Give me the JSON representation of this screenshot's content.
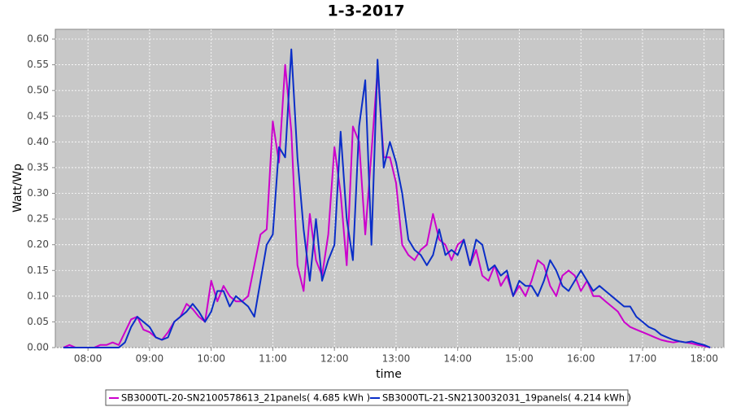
{
  "chart_data": {
    "type": "line",
    "title": "1-3-2017",
    "x_label": "time",
    "y_label": "Watt/Wp",
    "x": [
      7.6,
      7.7,
      7.8,
      7.9,
      8.0,
      8.1,
      8.2,
      8.3,
      8.4,
      8.5,
      8.6,
      8.7,
      8.8,
      8.9,
      9.0,
      9.1,
      9.2,
      9.3,
      9.4,
      9.5,
      9.6,
      9.7,
      9.8,
      9.9,
      10.0,
      10.1,
      10.2,
      10.3,
      10.4,
      10.5,
      10.6,
      10.7,
      10.8,
      10.9,
      11.0,
      11.1,
      11.2,
      11.3,
      11.4,
      11.5,
      11.6,
      11.7,
      11.8,
      11.9,
      12.0,
      12.1,
      12.2,
      12.3,
      12.4,
      12.5,
      12.6,
      12.7,
      12.8,
      12.9,
      13.0,
      13.1,
      13.2,
      13.3,
      13.4,
      13.5,
      13.6,
      13.7,
      13.8,
      13.9,
      14.0,
      14.1,
      14.2,
      14.3,
      14.4,
      14.5,
      14.6,
      14.7,
      14.8,
      14.9,
      15.0,
      15.1,
      15.2,
      15.3,
      15.4,
      15.5,
      15.6,
      15.7,
      15.8,
      15.9,
      16.0,
      16.1,
      16.2,
      16.3,
      16.4,
      16.5,
      16.6,
      16.7,
      16.8,
      16.9,
      17.0,
      17.1,
      17.2,
      17.3,
      17.4,
      17.5,
      17.6,
      17.7,
      17.8,
      17.9,
      18.0,
      18.1
    ],
    "series": [
      {
        "name": "SB3000TL-20-SN2100578613_21panels( 4.685 kWh )",
        "color": "#cc00cc",
        "values": [
          0,
          0.005,
          0,
          0,
          0,
          0,
          0.005,
          0.005,
          0.01,
          0.005,
          0.03,
          0.055,
          0.06,
          0.035,
          0.03,
          0.02,
          0.015,
          0.03,
          0.05,
          0.06,
          0.085,
          0.075,
          0.06,
          0.05,
          0.13,
          0.09,
          0.12,
          0.1,
          0.09,
          0.09,
          0.1,
          0.16,
          0.22,
          0.23,
          0.44,
          0.36,
          0.55,
          0.42,
          0.16,
          0.11,
          0.26,
          0.17,
          0.14,
          0.22,
          0.39,
          0.3,
          0.16,
          0.43,
          0.4,
          0.22,
          0.38,
          0.54,
          0.37,
          0.37,
          0.32,
          0.2,
          0.18,
          0.17,
          0.19,
          0.2,
          0.26,
          0.21,
          0.2,
          0.17,
          0.2,
          0.21,
          0.16,
          0.19,
          0.14,
          0.13,
          0.16,
          0.12,
          0.14,
          0.1,
          0.12,
          0.1,
          0.13,
          0.17,
          0.16,
          0.12,
          0.1,
          0.14,
          0.15,
          0.14,
          0.11,
          0.13,
          0.1,
          0.1,
          0.09,
          0.08,
          0.07,
          0.05,
          0.04,
          0.035,
          0.03,
          0.025,
          0.02,
          0.015,
          0.012,
          0.01,
          0.012,
          0.01,
          0.008,
          0.005,
          0.003,
          0
        ]
      },
      {
        "name": "SB3000TL-21-SN2130032031_19panels( 4.214 kWh )",
        "color": "#0a2ec8",
        "values": [
          0,
          0,
          0,
          0,
          0,
          0,
          0,
          0,
          0,
          0,
          0.01,
          0.04,
          0.06,
          0.05,
          0.04,
          0.02,
          0.015,
          0.02,
          0.05,
          0.06,
          0.07,
          0.085,
          0.07,
          0.05,
          0.07,
          0.11,
          0.11,
          0.08,
          0.1,
          0.09,
          0.08,
          0.06,
          0.13,
          0.2,
          0.22,
          0.39,
          0.37,
          0.58,
          0.37,
          0.23,
          0.13,
          0.25,
          0.13,
          0.17,
          0.2,
          0.42,
          0.25,
          0.17,
          0.43,
          0.52,
          0.2,
          0.56,
          0.35,
          0.4,
          0.36,
          0.3,
          0.21,
          0.19,
          0.18,
          0.16,
          0.18,
          0.23,
          0.18,
          0.19,
          0.18,
          0.21,
          0.16,
          0.21,
          0.2,
          0.15,
          0.16,
          0.14,
          0.15,
          0.1,
          0.13,
          0.12,
          0.12,
          0.1,
          0.13,
          0.17,
          0.15,
          0.12,
          0.11,
          0.13,
          0.15,
          0.13,
          0.11,
          0.12,
          0.11,
          0.1,
          0.09,
          0.08,
          0.08,
          0.06,
          0.05,
          0.04,
          0.035,
          0.025,
          0.02,
          0.015,
          0.012,
          0.01,
          0.012,
          0.008,
          0.005,
          0
        ]
      }
    ],
    "xlim": [
      7.47,
      18.32
    ],
    "xticks": [
      {
        "value": 8,
        "label": "08:00"
      },
      {
        "value": 9,
        "label": "09:00"
      },
      {
        "value": 10,
        "label": "10:00"
      },
      {
        "value": 11,
        "label": "11:00"
      },
      {
        "value": 12,
        "label": "12:00"
      },
      {
        "value": 13,
        "label": "13:00"
      },
      {
        "value": 14,
        "label": "14:00"
      },
      {
        "value": 15,
        "label": "15:00"
      },
      {
        "value": 16,
        "label": "16:00"
      },
      {
        "value": 17,
        "label": "17:00"
      },
      {
        "value": 18,
        "label": "18:00"
      }
    ],
    "ylim": [
      0,
      0.619
    ],
    "yticks": [
      {
        "value": 0,
        "label": "0.00"
      },
      {
        "value": 0.05,
        "label": "0.05"
      },
      {
        "value": 0.1,
        "label": "0.10"
      },
      {
        "value": 0.15,
        "label": "0.15"
      },
      {
        "value": 0.2,
        "label": "0.20"
      },
      {
        "value": 0.25,
        "label": "0.25"
      },
      {
        "value": 0.3,
        "label": "0.30"
      },
      {
        "value": 0.35,
        "label": "0.35"
      },
      {
        "value": 0.4,
        "label": "0.40"
      },
      {
        "value": 0.45,
        "label": "0.45"
      },
      {
        "value": 0.5,
        "label": "0.50"
      },
      {
        "value": 0.55,
        "label": "0.55"
      },
      {
        "value": 0.6,
        "label": "0.60"
      }
    ],
    "grid": true
  }
}
